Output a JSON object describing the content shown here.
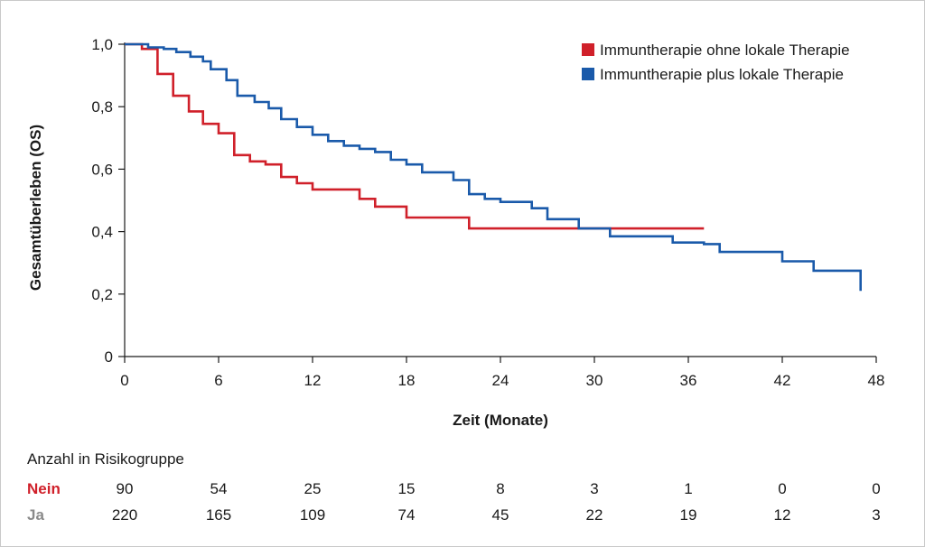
{
  "chart_data": {
    "type": "line",
    "title": "",
    "xlabel": "Zeit (Monate)",
    "ylabel": "Gesamtüberleben (OS)",
    "xlim": [
      0,
      48
    ],
    "ylim": [
      0,
      1
    ],
    "x_ticks": [
      "0",
      "6",
      "12",
      "18",
      "24",
      "30",
      "36",
      "42",
      "48"
    ],
    "y_ticks": [
      "0",
      "0,2",
      "0,4",
      "0,6",
      "0,8",
      "1,0"
    ],
    "grid": false,
    "legend_position": "top-right",
    "series": [
      {
        "name": "Immuntherapie ohne lokale Therapie",
        "color": "#d0202a",
        "step_points": [
          [
            0,
            1.0
          ],
          [
            1.1,
            0.985
          ],
          [
            2.1,
            0.905
          ],
          [
            3.1,
            0.835
          ],
          [
            4.1,
            0.785
          ],
          [
            5.0,
            0.745
          ],
          [
            6.0,
            0.715
          ],
          [
            7.0,
            0.645
          ],
          [
            8.0,
            0.625
          ],
          [
            9.0,
            0.615
          ],
          [
            10.0,
            0.575
          ],
          [
            11.0,
            0.555
          ],
          [
            12.0,
            0.535
          ],
          [
            15.0,
            0.505
          ],
          [
            16.0,
            0.48
          ],
          [
            18.0,
            0.445
          ],
          [
            22.0,
            0.41
          ],
          [
            37.0,
            0.41
          ]
        ]
      },
      {
        "name": "Immuntherapie plus lokale Therapie",
        "color": "#1a5aaa",
        "step_points": [
          [
            0,
            1.0
          ],
          [
            1.5,
            0.99
          ],
          [
            2.5,
            0.985
          ],
          [
            3.3,
            0.975
          ],
          [
            4.2,
            0.96
          ],
          [
            5.0,
            0.945
          ],
          [
            5.5,
            0.92
          ],
          [
            6.5,
            0.885
          ],
          [
            7.2,
            0.835
          ],
          [
            8.3,
            0.815
          ],
          [
            9.2,
            0.795
          ],
          [
            10.0,
            0.76
          ],
          [
            11.0,
            0.735
          ],
          [
            12.0,
            0.71
          ],
          [
            13.0,
            0.69
          ],
          [
            14.0,
            0.675
          ],
          [
            15.0,
            0.665
          ],
          [
            16.0,
            0.655
          ],
          [
            17.0,
            0.63
          ],
          [
            18.0,
            0.615
          ],
          [
            19.0,
            0.59
          ],
          [
            21.0,
            0.565
          ],
          [
            22.0,
            0.52
          ],
          [
            23.0,
            0.505
          ],
          [
            24.0,
            0.495
          ],
          [
            26.0,
            0.475
          ],
          [
            27.0,
            0.44
          ],
          [
            29.0,
            0.41
          ],
          [
            31.0,
            0.385
          ],
          [
            35.0,
            0.365
          ],
          [
            37.0,
            0.36
          ],
          [
            38.0,
            0.335
          ],
          [
            42.0,
            0.305
          ],
          [
            44.0,
            0.275
          ],
          [
            47.0,
            0.27
          ],
          [
            47.0,
            0.21
          ]
        ]
      }
    ]
  },
  "risk_table": {
    "title": "Anzahl in Risikogruppe",
    "rows": [
      {
        "label": "Nein",
        "color": "#d0202a",
        "values": [
          "90",
          "54",
          "25",
          "15",
          "8",
          "3",
          "1",
          "0",
          "0"
        ]
      },
      {
        "label": "Ja",
        "color": "#8a8a8a",
        "values": [
          "220",
          "165",
          "109",
          "74",
          "45",
          "22",
          "19",
          "12",
          "3"
        ]
      }
    ]
  }
}
